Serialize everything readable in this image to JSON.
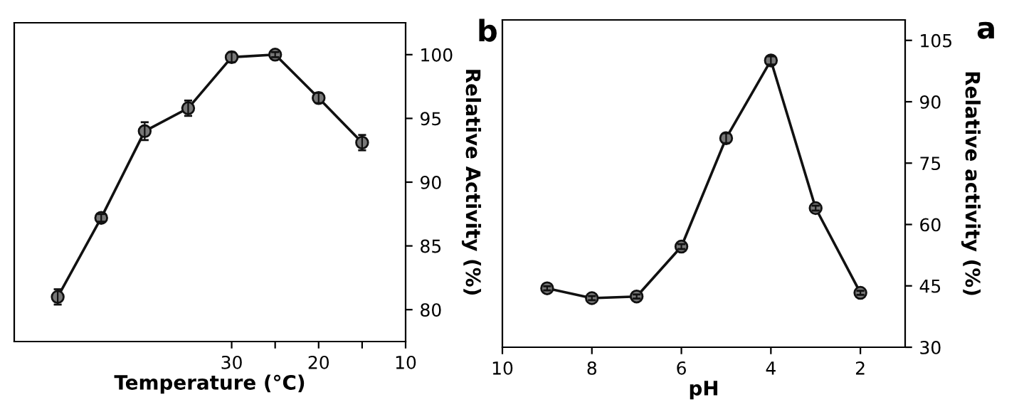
{
  "chart_data": [
    {
      "type": "line",
      "xlabel": "Temperature (°C)",
      "ylabel": "Relative Activity (%)",
      "annotations": [
        "b"
      ],
      "x": [
        50,
        45,
        40,
        35,
        30,
        25,
        20,
        15
      ],
      "series": [
        {
          "color": "#111111",
          "values": [
            81.0,
            87.2,
            94.0,
            95.8,
            99.8,
            100.0,
            96.6,
            93.1
          ],
          "errors": [
            0.6,
            0.3,
            0.7,
            0.6,
            0.4,
            0.2,
            0.4,
            0.6
          ]
        }
      ],
      "xlim": [
        55,
        10
      ],
      "xticks": [
        10,
        {
          "value": 15,
          "label": null
        },
        20,
        {
          "value": 25,
          "label": null
        },
        30
      ],
      "ylim": [
        77.5,
        102.5
      ],
      "yticks": [
        80,
        85,
        90,
        95,
        100
      ],
      "marker": "circle",
      "line_style": "solid",
      "grid": false,
      "legend": false
    },
    {
      "type": "line",
      "xlabel": "pH",
      "ylabel": "Relative activity (%)",
      "annotations": [
        "a"
      ],
      "x": [
        9,
        8,
        7,
        6,
        5,
        4,
        3,
        2
      ],
      "series": [
        {
          "color": "#111111",
          "values": [
            44.4,
            42.0,
            42.4,
            54.6,
            81.1,
            100.1,
            64.0,
            43.3
          ],
          "errors": [
            0.5,
            0.5,
            0.5,
            0.6,
            1.2,
            1.0,
            0.6,
            0.5
          ]
        }
      ],
      "xlim": [
        10,
        1
      ],
      "xticks": [
        10,
        8,
        6,
        4,
        2
      ],
      "ylim": [
        30,
        110
      ],
      "yticks": [
        30,
        45,
        60,
        75,
        90,
        105
      ],
      "marker": "circle",
      "line_style": "solid",
      "grid": false,
      "legend": false
    }
  ]
}
